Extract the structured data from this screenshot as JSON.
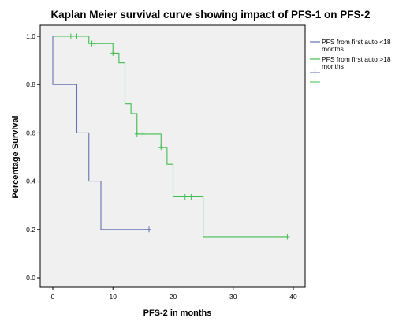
{
  "chart_data": {
    "type": "line",
    "title": "Kaplan Meier survival curve showing impact of PFS-1 on PFS-2",
    "xlabel": "PFS-2 in months",
    "ylabel": "Percentage Survival",
    "xlim": [
      0,
      40
    ],
    "ylim": [
      0.0,
      1.0
    ],
    "xticks": [
      0,
      10,
      20,
      30,
      40
    ],
    "yticks": [
      "0.0",
      "0.2",
      "0.4",
      "0.6",
      "0.8",
      "1.0"
    ],
    "grid": false,
    "legend_position": "right",
    "series": [
      {
        "name": "PFS from first auto <18 months",
        "color": "#6472b4",
        "steps": [
          [
            0,
            0.8
          ],
          [
            4,
            0.6
          ],
          [
            6,
            0.4
          ],
          [
            8,
            0.2
          ],
          [
            16,
            0.2
          ]
        ],
        "censored": [
          [
            16,
            0.2
          ]
        ]
      },
      {
        "name": "PFS from first auto >18 months",
        "color": "#3fbf4f",
        "steps": [
          [
            0,
            1.0
          ],
          [
            6,
            0.97
          ],
          [
            10,
            0.93
          ],
          [
            11,
            0.89
          ],
          [
            12,
            0.72
          ],
          [
            13,
            0.68
          ],
          [
            14,
            0.595
          ],
          [
            18,
            0.54
          ],
          [
            19,
            0.47
          ],
          [
            20,
            0.335
          ],
          [
            25,
            0.17
          ],
          [
            39,
            0.17
          ]
        ],
        "censored": [
          [
            3,
            1.0
          ],
          [
            4,
            1.0
          ],
          [
            6.5,
            0.97
          ],
          [
            7,
            0.97
          ],
          [
            10,
            0.93
          ],
          [
            14,
            0.595
          ],
          [
            15,
            0.595
          ],
          [
            18,
            0.54
          ],
          [
            22,
            0.335
          ],
          [
            23,
            0.335
          ],
          [
            39,
            0.17
          ]
        ]
      }
    ],
    "legend": [
      {
        "label": "PFS from first auto <18 months",
        "color": "#6472b4",
        "symbol": "line"
      },
      {
        "label": "PFS from first auto >18 months",
        "color": "#3fbf4f",
        "symbol": "line"
      },
      {
        "label": "",
        "color": "#6472b4",
        "symbol": "cross"
      },
      {
        "label": "",
        "color": "#3fbf4f",
        "symbol": "cross"
      }
    ]
  }
}
